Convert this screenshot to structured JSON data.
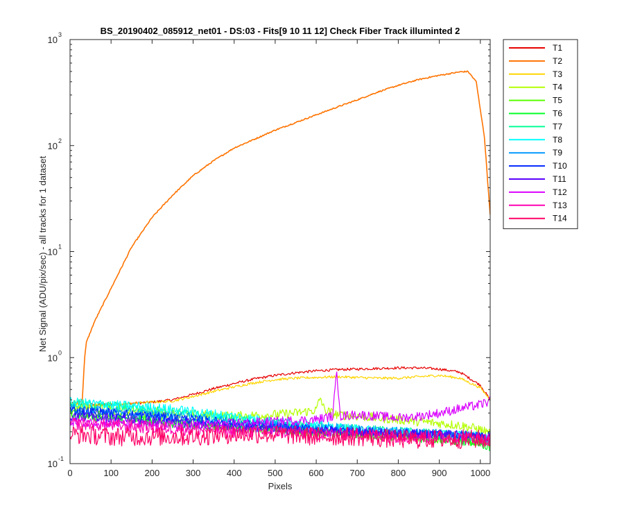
{
  "chart_data": {
    "type": "line",
    "title": "BS_20190402_085912_net01 - DS:03 - Fits[9  10  11  12]   Check Fiber     Track illuminted 2",
    "xlabel": "Pixels",
    "ylabel": "Net Signal (ADU/pix/sec) - all tracks for 1 dataset",
    "xlim": [
      0,
      1024
    ],
    "ylim": [
      0.1,
      1000
    ],
    "yscale": "log",
    "grid": false,
    "legend_position": "outside-right",
    "x_ticks": [
      "0",
      "100",
      "200",
      "300",
      "400",
      "500",
      "600",
      "700",
      "800",
      "900",
      "1000"
    ],
    "y_ticks": [
      {
        "base": "10",
        "exp": "-1"
      },
      {
        "base": "10",
        "exp": "0"
      },
      {
        "base": "10",
        "exp": "1"
      },
      {
        "base": "10",
        "exp": "2"
      },
      {
        "base": "10",
        "exp": "3"
      }
    ],
    "series": [
      {
        "name": "T1",
        "color": "#e60000",
        "x": [
          0,
          40,
          100,
          150,
          200,
          250,
          300,
          350,
          400,
          450,
          500,
          550,
          600,
          650,
          700,
          750,
          800,
          850,
          900,
          950,
          1000,
          1024
        ],
        "y": [
          0.37,
          0.36,
          0.36,
          0.37,
          0.38,
          0.4,
          0.45,
          0.51,
          0.57,
          0.63,
          0.68,
          0.72,
          0.75,
          0.77,
          0.78,
          0.79,
          0.8,
          0.8,
          0.78,
          0.73,
          0.55,
          0.4
        ]
      },
      {
        "name": "T2",
        "color": "#ff7300",
        "x": [
          0,
          30,
          35,
          40,
          60,
          100,
          150,
          200,
          250,
          300,
          350,
          400,
          450,
          500,
          550,
          600,
          650,
          700,
          750,
          800,
          850,
          900,
          950,
          970,
          990,
          1010,
          1024
        ],
        "y": [
          0.35,
          0.4,
          0.95,
          1.4,
          2.2,
          4.5,
          11,
          21,
          34,
          52,
          72,
          95,
          115,
          140,
          165,
          195,
          230,
          270,
          320,
          370,
          420,
          460,
          495,
          500,
          400,
          120,
          22
        ]
      },
      {
        "name": "T3",
        "color": "#ffd500",
        "x": [
          0,
          40,
          100,
          150,
          200,
          250,
          300,
          350,
          400,
          450,
          500,
          550,
          600,
          650,
          700,
          750,
          800,
          850,
          900,
          950,
          1000,
          1024
        ],
        "y": [
          0.37,
          0.36,
          0.36,
          0.37,
          0.38,
          0.39,
          0.43,
          0.48,
          0.53,
          0.58,
          0.62,
          0.64,
          0.65,
          0.66,
          0.65,
          0.64,
          0.64,
          0.66,
          0.68,
          0.64,
          0.52,
          0.4
        ]
      },
      {
        "name": "T4",
        "color": "#b3ff00",
        "x": [
          0,
          100,
          200,
          300,
          400,
          500,
          550,
          600,
          610,
          620,
          650,
          700,
          750,
          800,
          850,
          900,
          950,
          1000,
          1024
        ],
        "y": [
          0.35,
          0.33,
          0.31,
          0.29,
          0.28,
          0.29,
          0.3,
          0.32,
          0.42,
          0.32,
          0.29,
          0.28,
          0.27,
          0.26,
          0.25,
          0.24,
          0.23,
          0.21,
          0.19
        ]
      },
      {
        "name": "T5",
        "color": "#59ff00",
        "x": [
          0,
          100,
          200,
          300,
          400,
          500,
          600,
          700,
          800,
          900,
          1000,
          1024
        ],
        "y": [
          0.3,
          0.28,
          0.26,
          0.24,
          0.22,
          0.21,
          0.2,
          0.19,
          0.18,
          0.17,
          0.16,
          0.15
        ]
      },
      {
        "name": "T6",
        "color": "#00ff26",
        "x": [
          0,
          100,
          200,
          300,
          400,
          500,
          600,
          700,
          800,
          900,
          1000,
          1024
        ],
        "y": [
          0.29,
          0.27,
          0.25,
          0.23,
          0.22,
          0.21,
          0.2,
          0.19,
          0.18,
          0.17,
          0.16,
          0.14
        ]
      },
      {
        "name": "T7",
        "color": "#00ff99",
        "x": [
          0,
          100,
          200,
          300,
          400,
          500,
          600,
          700,
          800,
          900,
          1000,
          1024
        ],
        "y": [
          0.37,
          0.35,
          0.32,
          0.29,
          0.26,
          0.24,
          0.22,
          0.21,
          0.2,
          0.19,
          0.18,
          0.16
        ]
      },
      {
        "name": "T8",
        "color": "#00ffff",
        "x": [
          0,
          100,
          200,
          300,
          400,
          500,
          600,
          700,
          800,
          900,
          1000,
          1024
        ],
        "y": [
          0.38,
          0.36,
          0.34,
          0.31,
          0.28,
          0.25,
          0.23,
          0.21,
          0.2,
          0.19,
          0.18,
          0.17
        ]
      },
      {
        "name": "T9",
        "color": "#0099ff",
        "x": [
          0,
          100,
          200,
          300,
          400,
          500,
          600,
          700,
          800,
          900,
          1000,
          1024
        ],
        "y": [
          0.33,
          0.31,
          0.29,
          0.27,
          0.25,
          0.23,
          0.22,
          0.21,
          0.2,
          0.19,
          0.18,
          0.17
        ]
      },
      {
        "name": "T10",
        "color": "#0026ff",
        "x": [
          0,
          100,
          200,
          300,
          400,
          500,
          600,
          700,
          800,
          900,
          1000,
          1024
        ],
        "y": [
          0.32,
          0.3,
          0.28,
          0.26,
          0.24,
          0.22,
          0.21,
          0.2,
          0.19,
          0.19,
          0.18,
          0.18
        ]
      },
      {
        "name": "T11",
        "color": "#5900ff",
        "x": [
          0,
          100,
          200,
          300,
          400,
          500,
          600,
          700,
          800,
          900,
          1000,
          1024
        ],
        "y": [
          0.28,
          0.27,
          0.25,
          0.24,
          0.22,
          0.21,
          0.2,
          0.2,
          0.19,
          0.19,
          0.18,
          0.18
        ]
      },
      {
        "name": "T12",
        "color": "#d900ff",
        "x": [
          0,
          100,
          200,
          300,
          400,
          500,
          600,
          640,
          650,
          660,
          700,
          750,
          800,
          850,
          900,
          950,
          1000,
          1024
        ],
        "y": [
          0.25,
          0.24,
          0.23,
          0.23,
          0.24,
          0.25,
          0.26,
          0.28,
          0.72,
          0.28,
          0.29,
          0.28,
          0.27,
          0.28,
          0.3,
          0.33,
          0.36,
          0.39
        ]
      },
      {
        "name": "T13",
        "color": "#ff00b3",
        "x": [
          0,
          100,
          200,
          300,
          400,
          500,
          600,
          700,
          800,
          900,
          1000,
          1024
        ],
        "y": [
          0.24,
          0.23,
          0.22,
          0.21,
          0.2,
          0.2,
          0.19,
          0.19,
          0.18,
          0.18,
          0.17,
          0.17
        ]
      },
      {
        "name": "T14",
        "color": "#ff0066",
        "x": [
          0,
          100,
          200,
          300,
          400,
          500,
          600,
          700,
          800,
          900,
          1000,
          1024
        ],
        "y": [
          0.19,
          0.18,
          0.18,
          0.18,
          0.19,
          0.19,
          0.18,
          0.18,
          0.17,
          0.17,
          0.17,
          0.17
        ]
      }
    ]
  }
}
